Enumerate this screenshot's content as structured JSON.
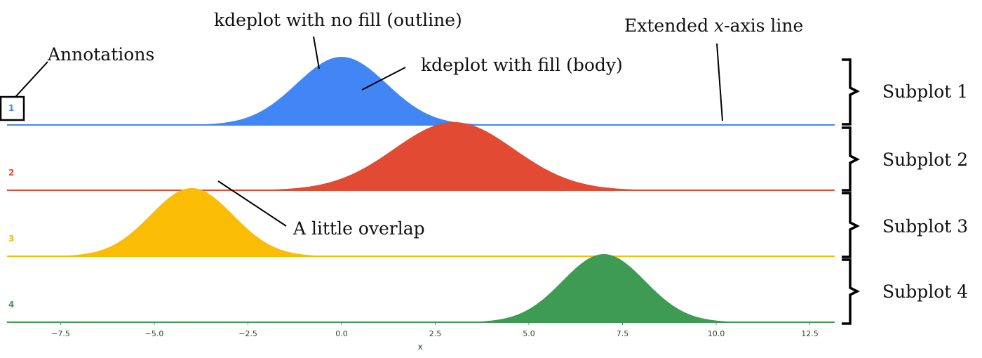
{
  "chart_data": {
    "type": "area",
    "title": "",
    "xlabel": "x",
    "ylabel": "",
    "xlim": [
      -9,
      13.2
    ],
    "xticks": [
      "−7.5",
      "−5.0",
      "−2.5",
      "0.0",
      "2.5",
      "5.0",
      "7.5",
      "10.0",
      "12.5"
    ],
    "xtick_values": [
      -7.5,
      -5.0,
      -2.5,
      0.0,
      2.5,
      5.0,
      7.5,
      10.0,
      12.5
    ],
    "grid": false,
    "series": [
      {
        "label": "1",
        "mean": 0.0,
        "sd": 1.2,
        "color": "#4285f4"
      },
      {
        "label": "2",
        "mean": 3.0,
        "sd": 1.6,
        "color": "#e24a33"
      },
      {
        "label": "3",
        "mean": -4.0,
        "sd": 1.1,
        "color": "#fbbc05"
      },
      {
        "label": "4",
        "mean": 7.0,
        "sd": 1.1,
        "color": "#3e9b54"
      }
    ]
  },
  "annotations": {
    "annotations_label": "Annotations",
    "outline_label": "kdeplot with no fill (outline)",
    "body_label": "kdeplot with fill (body)",
    "extended_axis_prefix": "Extended ",
    "extended_axis_var": "x",
    "extended_axis_suffix": "-axis line",
    "overlap_label": "A little overlap",
    "subplot_labels": [
      "Subplot 1",
      "Subplot 2",
      "Subplot 3",
      "Subplot 4"
    ]
  }
}
